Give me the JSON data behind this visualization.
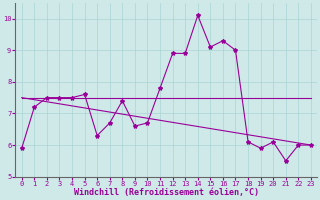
{
  "title": "",
  "xlabel": "Windchill (Refroidissement éolien,°C)",
  "ylabel": "",
  "bg_color": "#cfe9e9",
  "line_color": "#990099",
  "marker": "*",
  "xlim": [
    -0.5,
    23.5
  ],
  "ylim": [
    5,
    10.5
  ],
  "yticks": [
    5,
    6,
    7,
    8,
    9,
    10
  ],
  "xticks": [
    0,
    1,
    2,
    3,
    4,
    5,
    6,
    7,
    8,
    9,
    10,
    11,
    12,
    13,
    14,
    15,
    16,
    17,
    18,
    19,
    20,
    21,
    22,
    23
  ],
  "series": [
    {
      "x": [
        0,
        1,
        2,
        3,
        4,
        5,
        6,
        7,
        8,
        9,
        10,
        11,
        12,
        13,
        14,
        15,
        16,
        17,
        18,
        19,
        20,
        21,
        22,
        23
      ],
      "y": [
        5.9,
        7.2,
        7.5,
        7.5,
        7.5,
        7.6,
        6.3,
        6.7,
        7.4,
        6.6,
        6.7,
        7.8,
        8.9,
        8.9,
        10.1,
        9.1,
        9.3,
        9.0,
        6.1,
        5.9,
        6.1,
        5.5,
        6.0,
        6.0
      ]
    },
    {
      "x": [
        0,
        23
      ],
      "y": [
        7.5,
        7.5
      ]
    },
    {
      "x": [
        0,
        23
      ],
      "y": [
        7.5,
        6.0
      ]
    }
  ],
  "grid_color": "#aad4d4",
  "tick_fontsize": 5,
  "xlabel_fontsize": 6
}
